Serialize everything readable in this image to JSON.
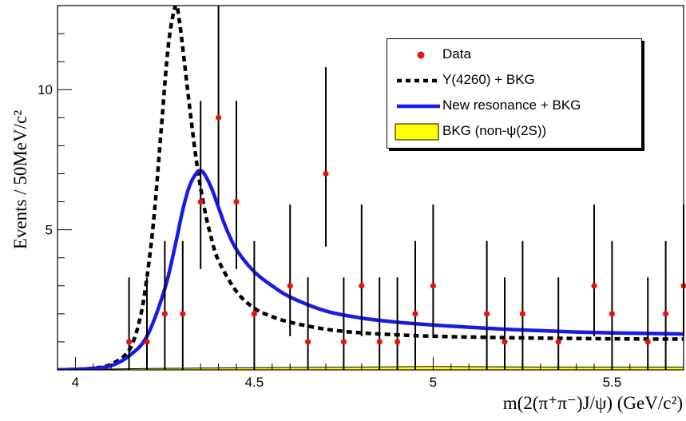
{
  "chart_data": {
    "type": "scatter",
    "title": "",
    "xlabel": "m(2(π⁺π⁻)J/ψ)  (GeV/c²)",
    "ylabel": "Events / 50MeV/c²",
    "xlim": [
      3.95,
      5.7
    ],
    "ylim": [
      0,
      13
    ],
    "x_ticks": [
      4,
      4.5,
      5,
      5.5
    ],
    "x_tick_labels": [
      "4",
      "4.5",
      "5",
      "5.5"
    ],
    "y_ticks": [
      5,
      10
    ],
    "y_tick_labels": [
      "5",
      "10"
    ],
    "legend_position": "top-right",
    "series": [
      {
        "name": "Data",
        "kind": "points-with-errors",
        "color": "#e8130d",
        "points": [
          {
            "x": 4.15,
            "y": 1,
            "lo": 0,
            "hi": 3.3
          },
          {
            "x": 4.2,
            "y": 1,
            "lo": 0,
            "hi": 3.3
          },
          {
            "x": 4.25,
            "y": 2,
            "lo": 0,
            "hi": 4.6
          },
          {
            "x": 4.3,
            "y": 2,
            "lo": 0,
            "hi": 4.6
          },
          {
            "x": 4.35,
            "y": 6,
            "lo": 3.6,
            "hi": 9.6
          },
          {
            "x": 4.4,
            "y": 9,
            "lo": 5.9,
            "hi": 13.1
          },
          {
            "x": 4.45,
            "y": 6,
            "lo": 3.6,
            "hi": 9.6
          },
          {
            "x": 4.5,
            "y": 2,
            "lo": 0,
            "hi": 4.6
          },
          {
            "x": 4.6,
            "y": 3,
            "lo": 1.2,
            "hi": 5.9
          },
          {
            "x": 4.65,
            "y": 1,
            "lo": 0,
            "hi": 3.3
          },
          {
            "x": 4.7,
            "y": 7,
            "lo": 4.4,
            "hi": 10.8
          },
          {
            "x": 4.75,
            "y": 1,
            "lo": 0,
            "hi": 3.3
          },
          {
            "x": 4.8,
            "y": 3,
            "lo": 1.2,
            "hi": 5.9
          },
          {
            "x": 4.85,
            "y": 1,
            "lo": 0,
            "hi": 3.3
          },
          {
            "x": 4.9,
            "y": 1,
            "lo": 0,
            "hi": 3.3
          },
          {
            "x": 4.95,
            "y": 2,
            "lo": 0,
            "hi": 4.6
          },
          {
            "x": 5.0,
            "y": 3,
            "lo": 1.2,
            "hi": 5.9
          },
          {
            "x": 5.15,
            "y": 2,
            "lo": 0,
            "hi": 4.6
          },
          {
            "x": 5.2,
            "y": 1,
            "lo": 0,
            "hi": 3.3
          },
          {
            "x": 5.25,
            "y": 2,
            "lo": 0,
            "hi": 4.6
          },
          {
            "x": 5.35,
            "y": 1,
            "lo": 0,
            "hi": 3.3
          },
          {
            "x": 5.45,
            "y": 3,
            "lo": 1.2,
            "hi": 5.9
          },
          {
            "x": 5.5,
            "y": 2,
            "lo": 0,
            "hi": 4.6
          },
          {
            "x": 5.6,
            "y": 1,
            "lo": 0,
            "hi": 3.3
          },
          {
            "x": 5.65,
            "y": 2,
            "lo": 0,
            "hi": 4.6
          },
          {
            "x": 5.7,
            "y": 3,
            "lo": 1.2,
            "hi": 5.9
          }
        ]
      },
      {
        "name": "Y(4260) + BKG",
        "kind": "dashed-line",
        "color": "#000000",
        "x": [
          3.95,
          4.0,
          4.05,
          4.1,
          4.15,
          4.18,
          4.2,
          4.22,
          4.24,
          4.26,
          4.28,
          4.29,
          4.3,
          4.32,
          4.34,
          4.36,
          4.38,
          4.4,
          4.45,
          4.5,
          4.55,
          4.6,
          4.7,
          4.8,
          4.9,
          5.0,
          5.2,
          5.4,
          5.6,
          5.7
        ],
        "y": [
          0.0,
          0.02,
          0.06,
          0.2,
          0.7,
          1.8,
          3.3,
          5.5,
          8.6,
          11.6,
          13.0,
          12.5,
          11.5,
          9.3,
          7.3,
          5.8,
          4.7,
          3.9,
          2.8,
          2.2,
          1.9,
          1.7,
          1.45,
          1.32,
          1.25,
          1.2,
          1.15,
          1.12,
          1.1,
          1.1
        ]
      },
      {
        "name": "New resonance + BKG",
        "kind": "line",
        "color": "#1a1ae6",
        "x": [
          3.95,
          4.0,
          4.05,
          4.1,
          4.15,
          4.2,
          4.25,
          4.28,
          4.3,
          4.32,
          4.34,
          4.35,
          4.36,
          4.38,
          4.4,
          4.42,
          4.45,
          4.5,
          4.55,
          4.6,
          4.7,
          4.8,
          4.9,
          5.0,
          5.1,
          5.2,
          5.3,
          5.4,
          5.5,
          5.6,
          5.7
        ],
        "y": [
          0.0,
          0.02,
          0.05,
          0.15,
          0.5,
          1.2,
          2.9,
          4.5,
          5.7,
          6.6,
          7.05,
          7.1,
          7.0,
          6.5,
          5.8,
          5.1,
          4.3,
          3.5,
          3.0,
          2.6,
          2.1,
          1.85,
          1.7,
          1.6,
          1.52,
          1.45,
          1.4,
          1.35,
          1.32,
          1.3,
          1.28
        ]
      },
      {
        "name": "BKG (non-ψ(2S))",
        "kind": "filled-area",
        "color": "#ffff00",
        "x": [
          3.95,
          4.2,
          4.5,
          4.8,
          5.0,
          5.3,
          5.5,
          5.7
        ],
        "y": [
          0.0,
          0.05,
          0.08,
          0.1,
          0.12,
          0.1,
          0.1,
          0.1
        ]
      }
    ]
  }
}
